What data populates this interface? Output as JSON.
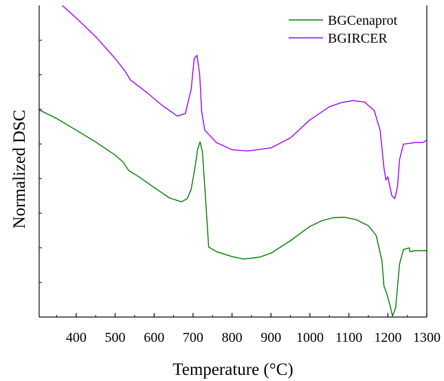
{
  "chart_data": {
    "type": "line",
    "title": "",
    "xlabel": "Temperature (°C)",
    "ylabel": "Normalized DSC",
    "xlim": [
      305,
      1300
    ],
    "ylim": [
      0,
      1
    ],
    "x_ticks": [
      400,
      500,
      600,
      700,
      800,
      900,
      1000,
      1100,
      1200,
      1300
    ],
    "y_tick_labels_shown": false,
    "grid": false,
    "legend_position": "top-right",
    "series": [
      {
        "name": "BGCenaprot",
        "color": "#007a00",
        "points": [
          [
            305,
            0.665
          ],
          [
            350,
            0.637
          ],
          [
            400,
            0.6
          ],
          [
            450,
            0.562
          ],
          [
            500,
            0.52
          ],
          [
            520,
            0.498
          ],
          [
            535,
            0.47
          ],
          [
            560,
            0.451
          ],
          [
            600,
            0.416
          ],
          [
            640,
            0.382
          ],
          [
            670,
            0.37
          ],
          [
            685,
            0.38
          ],
          [
            695,
            0.41
          ],
          [
            705,
            0.48
          ],
          [
            712,
            0.54
          ],
          [
            718,
            0.562
          ],
          [
            724,
            0.53
          ],
          [
            730,
            0.42
          ],
          [
            740,
            0.225
          ],
          [
            760,
            0.21
          ],
          [
            800,
            0.194
          ],
          [
            830,
            0.186
          ],
          [
            870,
            0.192
          ],
          [
            900,
            0.205
          ],
          [
            950,
            0.245
          ],
          [
            1000,
            0.291
          ],
          [
            1030,
            0.309
          ],
          [
            1060,
            0.319
          ],
          [
            1090,
            0.32
          ],
          [
            1120,
            0.312
          ],
          [
            1150,
            0.293
          ],
          [
            1170,
            0.262
          ],
          [
            1185,
            0.18
          ],
          [
            1190,
            0.1
          ],
          [
            1196,
            0.08
          ],
          [
            1205,
            0.04
          ],
          [
            1212,
            0.003
          ],
          [
            1220,
            0.03
          ],
          [
            1230,
            0.17
          ],
          [
            1240,
            0.217
          ],
          [
            1255,
            0.222
          ],
          [
            1257,
            0.21
          ],
          [
            1270,
            0.213
          ],
          [
            1300,
            0.213
          ]
        ]
      },
      {
        "name": "BGIRCER",
        "color": "#9900ff",
        "points": [
          [
            360,
            1.005
          ],
          [
            400,
            0.96
          ],
          [
            450,
            0.9
          ],
          [
            500,
            0.83
          ],
          [
            525,
            0.79
          ],
          [
            540,
            0.76
          ],
          [
            580,
            0.722
          ],
          [
            620,
            0.68
          ],
          [
            660,
            0.645
          ],
          [
            680,
            0.653
          ],
          [
            695,
            0.73
          ],
          [
            703,
            0.83
          ],
          [
            710,
            0.84
          ],
          [
            717,
            0.78
          ],
          [
            722,
            0.66
          ],
          [
            730,
            0.6
          ],
          [
            760,
            0.56
          ],
          [
            800,
            0.537
          ],
          [
            840,
            0.533
          ],
          [
            900,
            0.543
          ],
          [
            950,
            0.575
          ],
          [
            1000,
            0.633
          ],
          [
            1050,
            0.675
          ],
          [
            1080,
            0.688
          ],
          [
            1110,
            0.695
          ],
          [
            1140,
            0.69
          ],
          [
            1165,
            0.663
          ],
          [
            1180,
            0.6
          ],
          [
            1190,
            0.48
          ],
          [
            1195,
            0.44
          ],
          [
            1200,
            0.45
          ],
          [
            1210,
            0.39
          ],
          [
            1218,
            0.38
          ],
          [
            1225,
            0.42
          ],
          [
            1230,
            0.505
          ],
          [
            1240,
            0.555
          ],
          [
            1270,
            0.56
          ],
          [
            1290,
            0.56
          ],
          [
            1300,
            0.568
          ]
        ]
      }
    ]
  }
}
